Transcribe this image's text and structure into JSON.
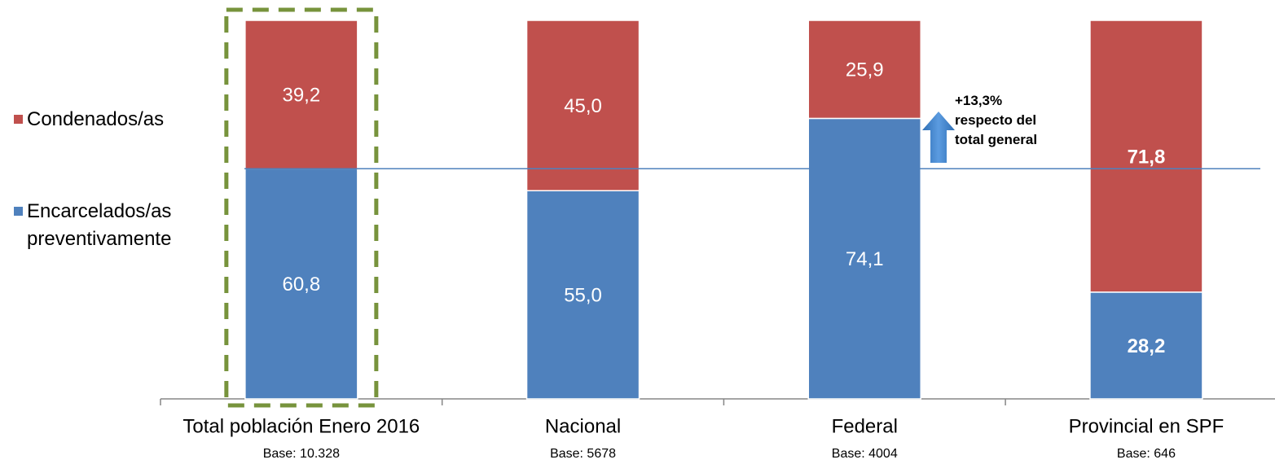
{
  "chart_data": {
    "type": "stacked_bar",
    "categories": [
      "Total población Enero 2016",
      "Nacional",
      "Federal",
      "Provincial en SPF"
    ],
    "category_bases": [
      "Base: 10.328",
      "Base: 5678",
      "Base: 4004",
      "Base: 646"
    ],
    "series": [
      {
        "name": "Encarcelados/as preventivamente",
        "color": "#4f81bd",
        "values": [
          60.8,
          55.0,
          74.1,
          28.2
        ],
        "value_labels": [
          "60,8",
          "55,0",
          "74,1",
          "28,2"
        ]
      },
      {
        "name": "Condenados/as",
        "color": "#c0504d",
        "values": [
          39.2,
          45.0,
          25.9,
          71.8
        ],
        "value_labels": [
          "39,2",
          "45,0",
          "25,9",
          "71,8"
        ]
      }
    ],
    "value_label_bold": [
      false,
      false,
      false,
      true
    ],
    "annotation": "+13,3% respecto del total general",
    "legend": "left"
  }
}
